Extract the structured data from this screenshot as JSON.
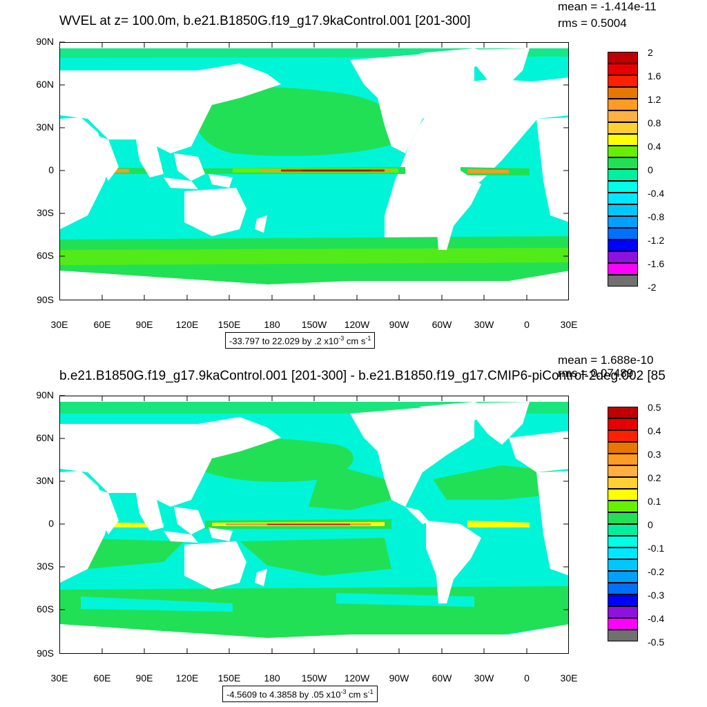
{
  "colors": {
    "ocean_base": "#00f5d8",
    "green": "#22e055",
    "yellow": "#ffff00",
    "orange": "#ff9a22",
    "red": "#ee1100",
    "darkred": "#c00000",
    "blue": "#0070ff",
    "land": "#ffffff"
  },
  "panels": [
    {
      "title": "WVEL at z= 100.0m, b.e21.B1850G.f19_g17.9kaControl.001 [201-300]",
      "stats": {
        "mean": "mean = -1.414e-11",
        "rms": "rms = 0.5004"
      },
      "lat_labels": [
        "90N",
        "60N",
        "30N",
        "0",
        "30S",
        "60S",
        "90S"
      ],
      "lon_labels": [
        "30E",
        "60E",
        "90E",
        "120E",
        "150E",
        "180",
        "150W",
        "120W",
        "90W",
        "60W",
        "30W",
        "0",
        "30E"
      ],
      "colorbar": {
        "labels": [
          "2",
          "1.6",
          "1.2",
          "0.8",
          "0.4",
          "0",
          "-0.4",
          "-0.8",
          "-1.2",
          "-1.6",
          "-2"
        ],
        "colors": [
          "#c00000",
          "#e80000",
          "#ff2000",
          "#e87700",
          "#ff9a22",
          "#ffb040",
          "#ffd030",
          "#ffff00",
          "#66f000",
          "#22e055",
          "#00f0a0",
          "#00ffe8",
          "#00e8ff",
          "#00c8ff",
          "#00a0ff",
          "#0070ff",
          "#0000ff",
          "#9010e0",
          "#ff00ff",
          "#d0d0d0",
          "#707070"
        ]
      },
      "contour_info": "-33.797 to 22.029 by .2 x10",
      "contour_info_exp": "-3",
      "contour_info_unit": " cm s",
      "contour_info_unit_exp": "-1"
    },
    {
      "title": "b.e21.B1850G.f19_g17.9kaControl.001 [201-300] - b.e21.B1850.f19_g17.CMIP6-piControl-2deg.002 [85",
      "stats": {
        "mean": "mean = 1.688e-10",
        "rms": "rms = 0.07489"
      },
      "lat_labels": [
        "90N",
        "60N",
        "30N",
        "0",
        "30S",
        "60S",
        "90S"
      ],
      "lon_labels": [
        "30E",
        "60E",
        "90E",
        "120E",
        "150E",
        "180",
        "150W",
        "120W",
        "90W",
        "60W",
        "30W",
        "0",
        "30E"
      ],
      "colorbar": {
        "labels": [
          "0.5",
          "0.4",
          "0.3",
          "0.2",
          "0.1",
          "0",
          "-0.1",
          "-0.2",
          "-0.3",
          "-0.4",
          "-0.5"
        ],
        "colors": [
          "#c00000",
          "#e80000",
          "#ff2000",
          "#e87700",
          "#ff9a22",
          "#ffb040",
          "#ffd030",
          "#ffff00",
          "#66f000",
          "#22e055",
          "#00f0a0",
          "#00ffe8",
          "#00e8ff",
          "#00c8ff",
          "#00a0ff",
          "#0070ff",
          "#0000ff",
          "#9010e0",
          "#ff00ff",
          "#d0d0d0",
          "#707070"
        ]
      },
      "contour_info": "-4.5609 to 4.3858 by .05 x10",
      "contour_info_exp": "-3",
      "contour_info_unit": " cm s",
      "contour_info_unit_exp": "-1"
    }
  ]
}
